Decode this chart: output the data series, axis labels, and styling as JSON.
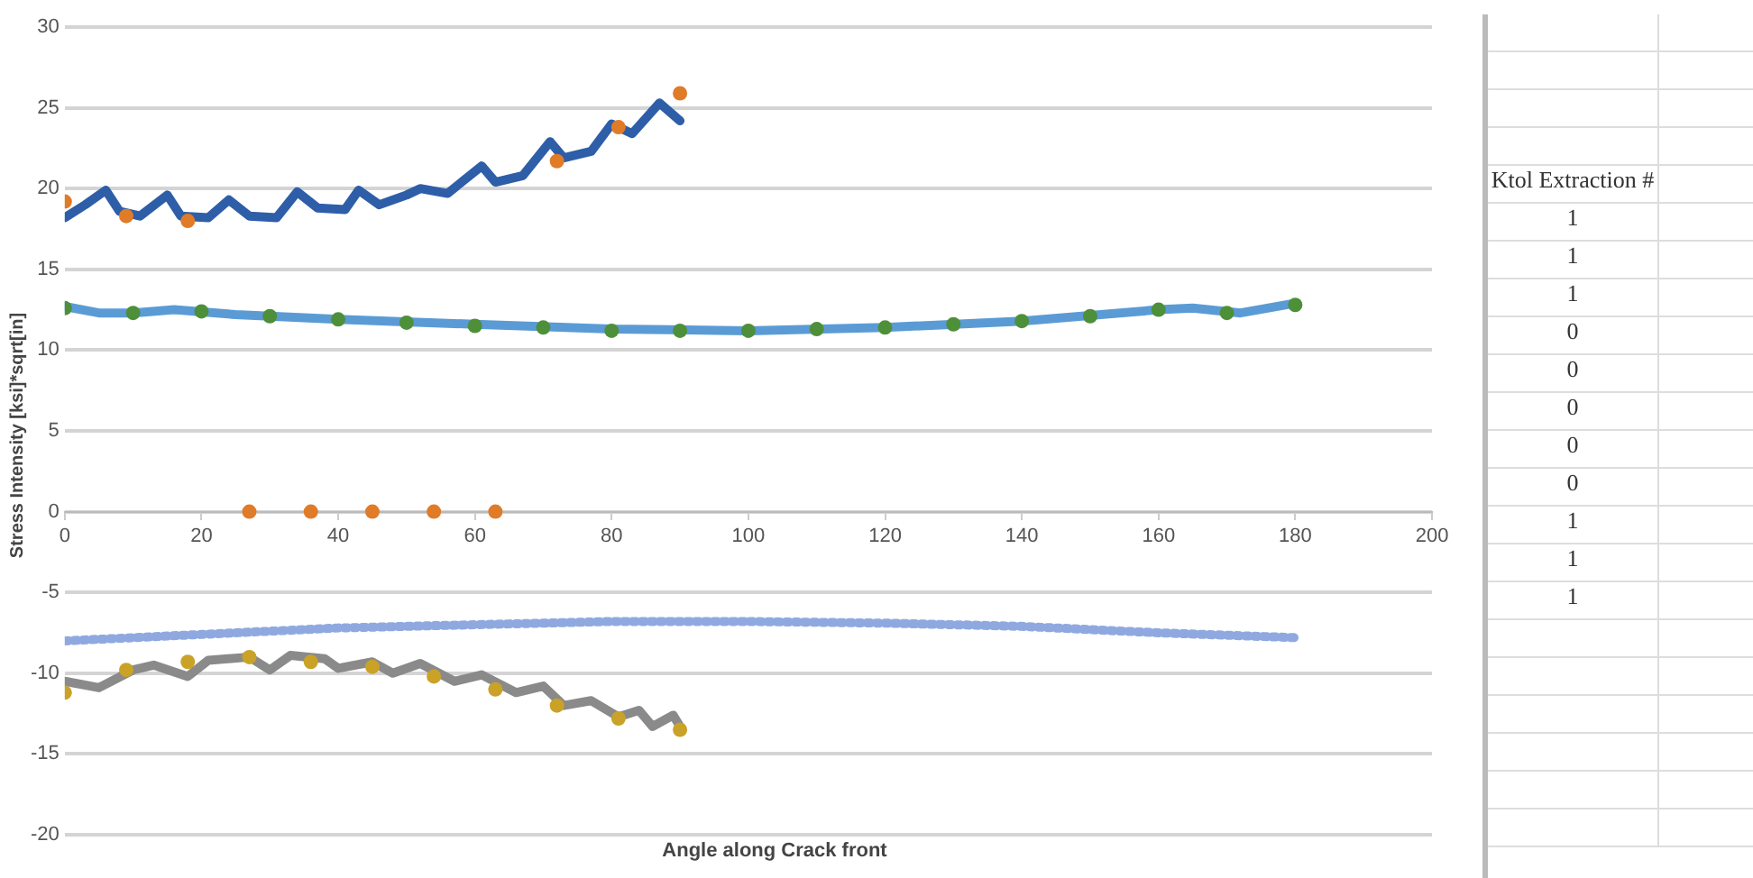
{
  "chart_data": {
    "type": "scatter",
    "xlabel": "Angle along Crack front",
    "ylabel": "Stress Intensity [ksi]*sqrt[in]",
    "xlim": [
      0,
      200
    ],
    "xticks": [
      0,
      20,
      40,
      60,
      80,
      100,
      120,
      140,
      160,
      180,
      200
    ],
    "ylim": [
      -20,
      30
    ],
    "yticks": [
      -20,
      -15,
      -10,
      -5,
      0,
      5,
      10,
      15,
      20,
      25,
      30
    ],
    "grid": "y",
    "legend": false,
    "series": [
      {
        "type": "line",
        "marker": "none",
        "color": "#2e5ea8",
        "x": [
          0,
          3,
          6,
          8,
          11,
          15,
          17,
          21,
          24,
          27,
          31,
          34,
          37,
          41,
          43,
          46,
          50,
          52,
          56,
          61,
          63,
          67,
          71,
          73,
          77,
          80,
          83,
          87,
          90
        ],
        "values": [
          18.2,
          19.0,
          19.9,
          18.6,
          18.3,
          19.6,
          18.3,
          18.2,
          19.3,
          18.3,
          18.2,
          19.8,
          18.8,
          18.7,
          19.9,
          19.0,
          19.6,
          20.0,
          19.7,
          21.4,
          20.4,
          20.8,
          22.9,
          21.9,
          22.3,
          24.0,
          23.4,
          25.3,
          24.2
        ]
      },
      {
        "type": "line",
        "marker": "none",
        "color": "#5b9bd5",
        "x": [
          0,
          5,
          10,
          16,
          25,
          40,
          60,
          80,
          100,
          120,
          140,
          160,
          165,
          172,
          180
        ],
        "values": [
          12.7,
          12.3,
          12.3,
          12.5,
          12.2,
          11.9,
          11.6,
          11.3,
          11.2,
          11.4,
          11.8,
          12.5,
          12.6,
          12.3,
          12.9
        ]
      },
      {
        "type": "scatter",
        "marker": "circle",
        "color": "#4e8f3a",
        "x": [
          0,
          10,
          20,
          30,
          40,
          50,
          60,
          70,
          80,
          90,
          100,
          110,
          120,
          130,
          140,
          150,
          160,
          170,
          180
        ],
        "values": [
          12.6,
          12.3,
          12.4,
          12.1,
          11.9,
          11.7,
          11.5,
          11.4,
          11.2,
          11.2,
          11.2,
          11.3,
          11.4,
          11.6,
          11.8,
          12.1,
          12.5,
          12.3,
          12.8
        ]
      },
      {
        "type": "line",
        "marker": "none",
        "line_style": "dotted",
        "color": "#8fa9e0",
        "x": [
          0,
          20,
          40,
          60,
          80,
          100,
          120,
          140,
          160,
          180
        ],
        "values": [
          -8.0,
          -7.6,
          -7.2,
          -7.0,
          -6.8,
          -6.8,
          -6.9,
          -7.1,
          -7.5,
          -7.8
        ]
      },
      {
        "type": "line",
        "marker": "none",
        "color": "#8a8a8a",
        "x": [
          0,
          5,
          10,
          13,
          18,
          21,
          27,
          30,
          33,
          38,
          40,
          45,
          48,
          52,
          57,
          61,
          66,
          70,
          73,
          77,
          81,
          84,
          86,
          89,
          90
        ],
        "values": [
          -10.5,
          -10.9,
          -9.8,
          -9.5,
          -10.2,
          -9.2,
          -9.0,
          -9.8,
          -8.9,
          -9.1,
          -9.7,
          -9.3,
          -10.0,
          -9.4,
          -10.5,
          -10.1,
          -11.2,
          -10.8,
          -12.0,
          -11.7,
          -12.7,
          -12.3,
          -13.3,
          -12.6,
          -13.3
        ]
      },
      {
        "type": "scatter",
        "marker": "circle",
        "color": "#c9a227",
        "x": [
          0,
          9,
          18,
          27,
          36,
          45,
          54,
          63,
          72,
          81,
          90
        ],
        "values": [
          -11.2,
          -9.8,
          -9.3,
          -9.0,
          -9.3,
          -9.6,
          -10.2,
          -11.0,
          -12.0,
          -12.8,
          -13.5
        ]
      },
      {
        "type": "scatter",
        "marker": "circle",
        "color": "#e07b28",
        "x": [
          0,
          9,
          18,
          27,
          36,
          45,
          54,
          63,
          72,
          81,
          90
        ],
        "values": [
          19.2,
          18.3,
          18.0,
          0,
          0,
          0,
          0,
          0,
          21.7,
          23.8,
          25.9
        ]
      }
    ],
    "annotations": [
      "Ktol Extraction #",
      "1",
      "1",
      "1",
      "0",
      "0",
      "0",
      "0",
      "0",
      "1",
      "1",
      "1"
    ]
  }
}
